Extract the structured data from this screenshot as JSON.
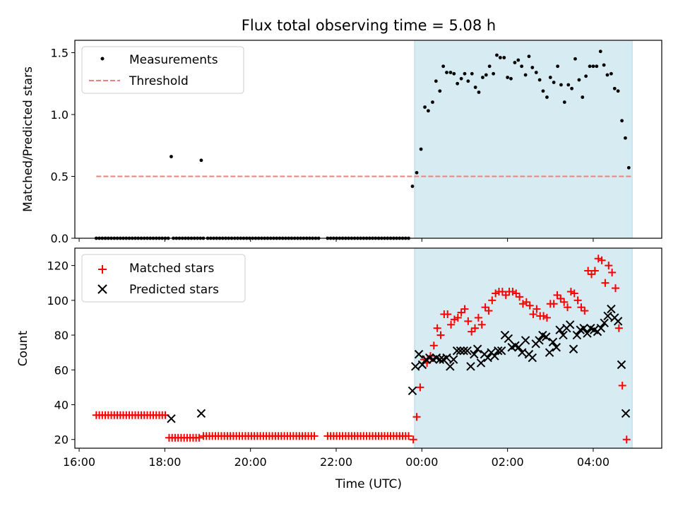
{
  "chart_data": {
    "type": "scatter",
    "title": "Flux total observing time = 5.08 h",
    "xlabel": "Time (UTC)",
    "x_unit": "hours since 16:00 UTC",
    "xlim": [
      -0.1,
      13.6
    ],
    "x_ticks": [
      {
        "value": 0,
        "label": "16:00"
      },
      {
        "value": 2,
        "label": "18:00"
      },
      {
        "value": 4,
        "label": "20:00"
      },
      {
        "value": 6,
        "label": "22:00"
      },
      {
        "value": 8,
        "label": "00:00"
      },
      {
        "value": 10,
        "label": "02:00"
      },
      {
        "value": 12,
        "label": "04:00"
      }
    ],
    "shaded_interval": {
      "start": 7.83,
      "end": 12.91,
      "color": "#add8e6"
    },
    "top": {
      "ylabel": "Matched/Predicted stars",
      "ylim": [
        0,
        1.6
      ],
      "y_ticks": [
        {
          "value": 0.0,
          "label": "0.0"
        },
        {
          "value": 0.5,
          "label": "0.5"
        },
        {
          "value": 1.0,
          "label": "1.0"
        },
        {
          "value": 1.5,
          "label": "1.5"
        }
      ],
      "legend": {
        "placement": "upper-left",
        "entries": [
          "Measurements",
          "Threshold"
        ]
      },
      "series": [
        {
          "name": "Measurements",
          "marker": "dot",
          "color": "#000000",
          "zero_runs": [
            [
              0.4,
              2.1,
              0.07
            ],
            [
              2.2,
              2.9,
              0.07
            ],
            [
              3.0,
              5.6,
              0.07
            ],
            [
              5.8,
              7.75,
              0.07
            ]
          ],
          "points": [
            [
              2.15,
              0.66
            ],
            [
              2.85,
              0.63
            ],
            [
              7.78,
              0.42
            ],
            [
              7.88,
              0.53
            ],
            [
              7.98,
              0.72
            ],
            [
              8.07,
              1.06
            ],
            [
              8.15,
              1.03
            ],
            [
              8.25,
              1.1
            ],
            [
              8.33,
              1.27
            ],
            [
              8.42,
              1.19
            ],
            [
              8.5,
              1.39
            ],
            [
              8.58,
              1.34
            ],
            [
              8.67,
              1.34
            ],
            [
              8.75,
              1.33
            ],
            [
              8.83,
              1.25
            ],
            [
              8.92,
              1.29
            ],
            [
              9.0,
              1.33
            ],
            [
              9.08,
              1.27
            ],
            [
              9.17,
              1.33
            ],
            [
              9.25,
              1.22
            ],
            [
              9.33,
              1.18
            ],
            [
              9.42,
              1.3
            ],
            [
              9.5,
              1.32
            ],
            [
              9.58,
              1.39
            ],
            [
              9.67,
              1.33
            ],
            [
              9.75,
              1.48
            ],
            [
              9.83,
              1.46
            ],
            [
              9.92,
              1.46
            ],
            [
              10.0,
              1.3
            ],
            [
              10.08,
              1.29
            ],
            [
              10.17,
              1.42
            ],
            [
              10.25,
              1.44
            ],
            [
              10.33,
              1.39
            ],
            [
              10.42,
              1.32
            ],
            [
              10.5,
              1.47
            ],
            [
              10.58,
              1.38
            ],
            [
              10.67,
              1.34
            ],
            [
              10.75,
              1.28
            ],
            [
              10.83,
              1.19
            ],
            [
              10.92,
              1.14
            ],
            [
              11.0,
              1.3
            ],
            [
              11.08,
              1.26
            ],
            [
              11.17,
              1.39
            ],
            [
              11.25,
              1.24
            ],
            [
              11.33,
              1.1
            ],
            [
              11.42,
              1.24
            ],
            [
              11.5,
              1.21
            ],
            [
              11.58,
              1.45
            ],
            [
              11.67,
              1.28
            ],
            [
              11.75,
              1.14
            ],
            [
              11.83,
              1.31
            ],
            [
              11.92,
              1.39
            ],
            [
              12.0,
              1.39
            ],
            [
              12.08,
              1.39
            ],
            [
              12.17,
              1.51
            ],
            [
              12.25,
              1.4
            ],
            [
              12.33,
              1.32
            ],
            [
              12.42,
              1.33
            ],
            [
              12.5,
              1.21
            ],
            [
              12.58,
              1.19
            ],
            [
              12.67,
              0.95
            ],
            [
              12.75,
              0.81
            ],
            [
              12.83,
              0.57
            ]
          ]
        },
        {
          "name": "Threshold",
          "style": "dashed",
          "color": "#f08080",
          "x": [
            0.4,
            12.9
          ],
          "y": [
            0.5,
            0.5
          ]
        }
      ]
    },
    "bottom": {
      "ylabel": "Count",
      "ylim": [
        15,
        130
      ],
      "y_ticks": [
        {
          "value": 20,
          "label": "20"
        },
        {
          "value": 40,
          "label": "40"
        },
        {
          "value": 60,
          "label": "60"
        },
        {
          "value": 80,
          "label": "80"
        },
        {
          "value": 100,
          "label": "100"
        },
        {
          "value": 120,
          "label": "120"
        }
      ],
      "legend": {
        "placement": "upper-left",
        "entries": [
          "Matched stars",
          "Predicted stars"
        ]
      },
      "series": [
        {
          "name": "Matched stars",
          "marker": "plus",
          "color": "#ff0000",
          "runs": [
            [
              0.4,
              2.05,
              34
            ],
            [
              2.1,
              2.8,
              21
            ],
            [
              2.9,
              5.55,
              22
            ],
            [
              5.8,
              7.75,
              22
            ]
          ],
          "points": [
            [
              7.8,
              20
            ],
            [
              7.88,
              33
            ],
            [
              7.96,
              50
            ],
            [
              8.05,
              66
            ],
            [
              8.12,
              64
            ],
            [
              8.2,
              68
            ],
            [
              8.28,
              74
            ],
            [
              8.36,
              84
            ],
            [
              8.44,
              80
            ],
            [
              8.52,
              92
            ],
            [
              8.6,
              92
            ],
            [
              8.68,
              86
            ],
            [
              8.76,
              89
            ],
            [
              8.84,
              90
            ],
            [
              8.92,
              93
            ],
            [
              9.0,
              95
            ],
            [
              9.08,
              88
            ],
            [
              9.16,
              82
            ],
            [
              9.24,
              84
            ],
            [
              9.32,
              90
            ],
            [
              9.4,
              86
            ],
            [
              9.48,
              96
            ],
            [
              9.56,
              94
            ],
            [
              9.64,
              100
            ],
            [
              9.72,
              104
            ],
            [
              9.8,
              105
            ],
            [
              9.88,
              105
            ],
            [
              9.96,
              103
            ],
            [
              10.04,
              105
            ],
            [
              10.12,
              105
            ],
            [
              10.2,
              104
            ],
            [
              10.28,
              102
            ],
            [
              10.36,
              98
            ],
            [
              10.44,
              99
            ],
            [
              10.52,
              97
            ],
            [
              10.6,
              92
            ],
            [
              10.68,
              95
            ],
            [
              10.76,
              91
            ],
            [
              10.84,
              91
            ],
            [
              10.92,
              90
            ],
            [
              11.0,
              98
            ],
            [
              11.08,
              98
            ],
            [
              11.16,
              103
            ],
            [
              11.24,
              101
            ],
            [
              11.32,
              99
            ],
            [
              11.4,
              96
            ],
            [
              11.48,
              105
            ],
            [
              11.56,
              104
            ],
            [
              11.64,
              100
            ],
            [
              11.72,
              96
            ],
            [
              11.8,
              94
            ],
            [
              11.88,
              117
            ],
            [
              11.96,
              115
            ],
            [
              12.04,
              117
            ],
            [
              12.12,
              124
            ],
            [
              12.2,
              123
            ],
            [
              12.28,
              110
            ],
            [
              12.36,
              120
            ],
            [
              12.44,
              116
            ],
            [
              12.52,
              107
            ],
            [
              12.6,
              84
            ],
            [
              12.68,
              51
            ],
            [
              12.78,
              20
            ]
          ]
        },
        {
          "name": "Predicted stars",
          "marker": "x",
          "color": "#000000",
          "points": [
            [
              2.15,
              32
            ],
            [
              2.85,
              35
            ],
            [
              7.78,
              48
            ],
            [
              7.85,
              62
            ],
            [
              7.93,
              69
            ],
            [
              8.01,
              63
            ],
            [
              8.1,
              66
            ],
            [
              8.18,
              67
            ],
            [
              8.26,
              66
            ],
            [
              8.34,
              67
            ],
            [
              8.42,
              66
            ],
            [
              8.5,
              66
            ],
            [
              8.58,
              67
            ],
            [
              8.66,
              62
            ],
            [
              8.74,
              66
            ],
            [
              8.82,
              71
            ],
            [
              8.9,
              71
            ],
            [
              8.98,
              71
            ],
            [
              9.06,
              71
            ],
            [
              9.14,
              62
            ],
            [
              9.22,
              69
            ],
            [
              9.3,
              72
            ],
            [
              9.38,
              64
            ],
            [
              9.46,
              69
            ],
            [
              9.54,
              67
            ],
            [
              9.62,
              70
            ],
            [
              9.7,
              68
            ],
            [
              9.78,
              71
            ],
            [
              9.86,
              71
            ],
            [
              9.94,
              80
            ],
            [
              10.02,
              78
            ],
            [
              10.1,
              73
            ],
            [
              10.18,
              74
            ],
            [
              10.26,
              73
            ],
            [
              10.34,
              70
            ],
            [
              10.42,
              77
            ],
            [
              10.5,
              69
            ],
            [
              10.58,
              67
            ],
            [
              10.66,
              75
            ],
            [
              10.74,
              77
            ],
            [
              10.82,
              80
            ],
            [
              10.9,
              79
            ],
            [
              10.98,
              70
            ],
            [
              11.06,
              76
            ],
            [
              11.14,
              73
            ],
            [
              11.22,
              83
            ],
            [
              11.3,
              80
            ],
            [
              11.38,
              84
            ],
            [
              11.46,
              86
            ],
            [
              11.54,
              72
            ],
            [
              11.62,
              80
            ],
            [
              11.7,
              83
            ],
            [
              11.78,
              84
            ],
            [
              11.86,
              81
            ],
            [
              11.94,
              84
            ],
            [
              12.02,
              83
            ],
            [
              12.1,
              82
            ],
            [
              12.18,
              84
            ],
            [
              12.26,
              87
            ],
            [
              12.34,
              91
            ],
            [
              12.42,
              95
            ],
            [
              12.5,
              90
            ],
            [
              12.58,
              88
            ],
            [
              12.66,
              63
            ],
            [
              12.76,
              35
            ]
          ]
        }
      ]
    }
  }
}
